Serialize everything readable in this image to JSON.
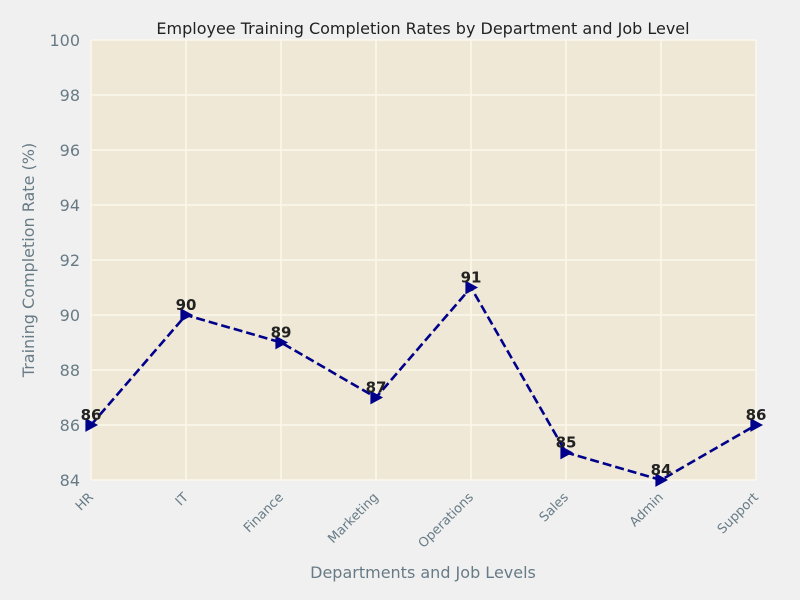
{
  "chart_data": {
    "type": "line",
    "title": "Employee Training Completion Rates by Department and Job Level",
    "xlabel": "Departments and Job Levels",
    "ylabel": "Training Completion Rate (%)",
    "categories": [
      "HR",
      "IT",
      "Finance",
      "Marketing",
      "Operations",
      "Sales",
      "Admin",
      "Support"
    ],
    "series": [
      {
        "values": [
          86,
          90,
          89,
          87,
          91,
          85,
          84,
          86
        ]
      }
    ],
    "data_labels": [
      "86",
      "90",
      "89",
      "87",
      "91",
      "85",
      "84",
      "86"
    ],
    "ylim": [
      84,
      100
    ],
    "yticks": [
      84,
      86,
      88,
      90,
      92,
      94,
      96,
      98,
      100
    ],
    "grid": true,
    "line_style": "dashed",
    "marker": "right-triangle",
    "colors": {
      "line": "#00008b",
      "plot_background": "#efe8d6",
      "figure_background": "#f0f0f0",
      "grid": "#fbf7ec"
    }
  }
}
